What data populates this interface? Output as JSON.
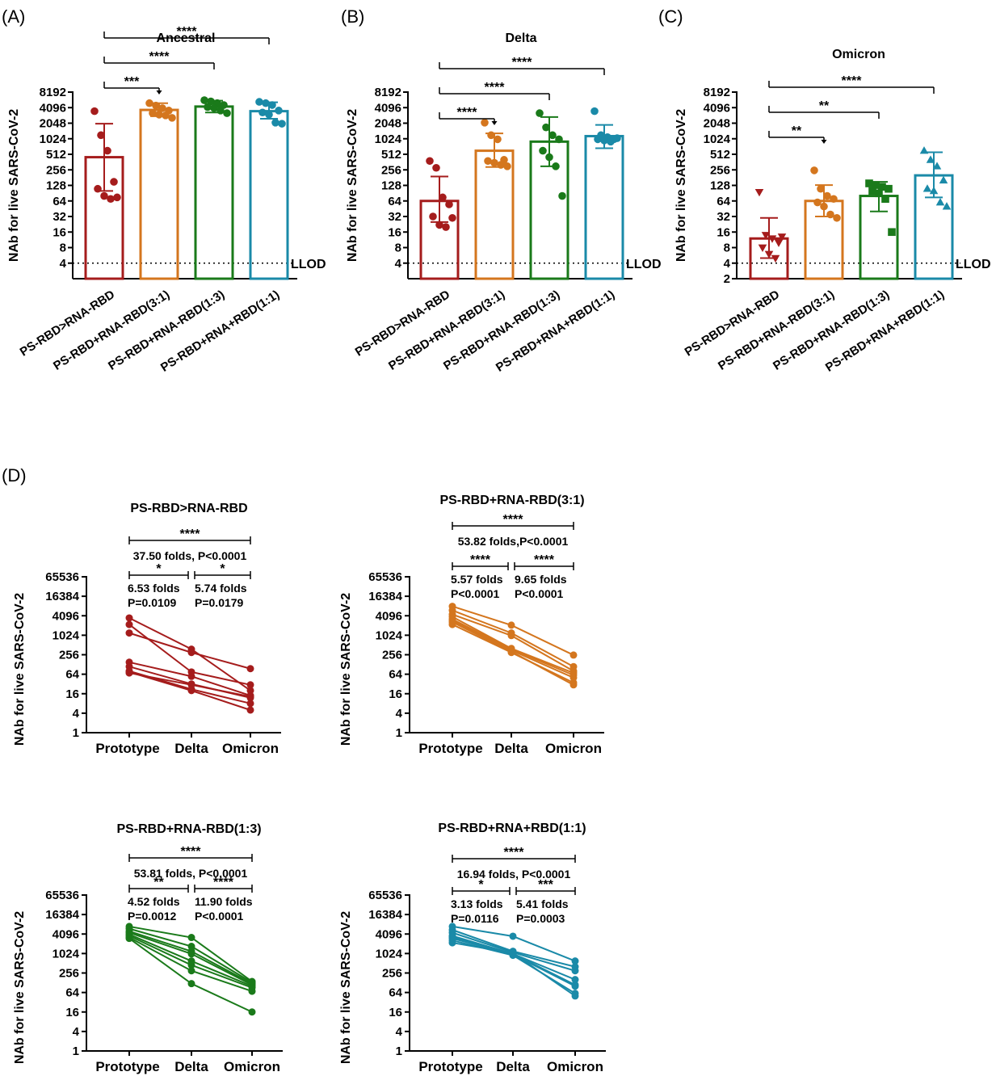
{
  "figure": {
    "panel_labels": [
      "(A)",
      "(B)",
      "(C)",
      "(D)"
    ]
  },
  "chart_data": [
    {
      "id": "A",
      "type": "bar",
      "title": "Ancestral",
      "ylabel": "NAb for live SARS-CoV-2",
      "yscale": "log2",
      "ylim": [
        2,
        8192
      ],
      "yticks": [
        4,
        8,
        16,
        32,
        64,
        128,
        256,
        512,
        1024,
        2048,
        4096,
        8192
      ],
      "ytick_labels": [
        "4",
        "8",
        "16",
        "32",
        "64",
        "128",
        "256",
        "512",
        "1024",
        "2048",
        "4096",
        "8192"
      ],
      "lod": {
        "value": 4,
        "label": "LLOD"
      },
      "categories": [
        "PS-RBD>RNA-RBD",
        "PS-RBD+RNA-RBD(3:1)",
        "PS-RBD+RNA-RBD(1:3)",
        "PS-RBD+RNA+RBD(1:1)"
      ],
      "colors": [
        "#a51c1c",
        "#d4761e",
        "#1a7a1a",
        "#1a8aa8"
      ],
      "markers": [
        "circle",
        "circle",
        "circle",
        "circle"
      ],
      "values": [
        450,
        3700,
        4300,
        3500
      ],
      "errors": [
        [
          100,
          2000
        ],
        [
          2800,
          5000
        ],
        [
          3300,
          5600
        ],
        [
          2500,
          5200
        ]
      ],
      "points": [
        [
          3500,
          1200,
          600,
          150,
          110,
          80,
          70,
          75
        ],
        [
          5000,
          4500,
          4000,
          3600,
          3200,
          3000,
          2900,
          2600
        ],
        [
          5700,
          5400,
          5000,
          4600,
          4200,
          4000,
          3600,
          3200
        ],
        [
          5300,
          5000,
          4600,
          3600,
          3300,
          3000,
          2100,
          2000
        ]
      ],
      "comparisons": [
        {
          "from": 0,
          "to": 1,
          "label": "***",
          "arrow": true
        },
        {
          "from": 0,
          "to": 2,
          "label": "****",
          "arrow": false
        },
        {
          "from": 0,
          "to": 3,
          "label": "****",
          "arrow": false
        }
      ]
    },
    {
      "id": "B",
      "type": "bar",
      "title": "Delta",
      "ylabel": "NAb for live SARS-CoV-2",
      "yscale": "log2",
      "ylim": [
        2,
        8192
      ],
      "yticks": [
        4,
        8,
        16,
        32,
        64,
        128,
        256,
        512,
        1024,
        2048,
        4096,
        8192
      ],
      "ytick_labels": [
        "4",
        "8",
        "16",
        "32",
        "64",
        "128",
        "256",
        "512",
        "1024",
        "2048",
        "4096",
        "8192"
      ],
      "lod": {
        "value": 4,
        "label": "LLOD"
      },
      "categories": [
        "PS-RBD>RNA-RBD",
        "PS-RBD+RNA-RBD(3:1)",
        "PS-RBD+RNA-RBD(1:3)",
        "PS-RBD+RNA+RBD(1:1)"
      ],
      "colors": [
        "#a51c1c",
        "#d4761e",
        "#1a7a1a",
        "#1a8aa8"
      ],
      "markers": [
        "circle",
        "circle",
        "circle",
        "circle"
      ],
      "values": [
        64,
        600,
        900,
        1150
      ],
      "errors": [
        [
          25,
          190
        ],
        [
          290,
          1300
        ],
        [
          300,
          2700
        ],
        [
          670,
          1900
        ]
      ],
      "points": [
        [
          380,
          280,
          75,
          55,
          32,
          22,
          20,
          30
        ],
        [
          2100,
          1200,
          1000,
          400,
          380,
          350,
          320,
          300
        ],
        [
          3200,
          1700,
          1200,
          1000,
          600,
          450,
          300,
          80
        ],
        [
          3500,
          1200,
          1100,
          1000,
          1000,
          950,
          900,
          1050
        ]
      ],
      "comparisons": [
        {
          "from": 0,
          "to": 1,
          "label": "****",
          "arrow": true
        },
        {
          "from": 0,
          "to": 2,
          "label": "****",
          "arrow": false
        },
        {
          "from": 0,
          "to": 3,
          "label": "****",
          "arrow": false
        }
      ]
    },
    {
      "id": "C",
      "type": "bar",
      "title": "Omicron",
      "ylabel": "NAb for live SARS-CoV-2",
      "yscale": "log2",
      "ylim": [
        2,
        8192
      ],
      "yticks": [
        2,
        4,
        8,
        16,
        32,
        64,
        128,
        256,
        512,
        1024,
        2048,
        4096,
        8192
      ],
      "ytick_labels": [
        "2",
        "4",
        "8",
        "16",
        "32",
        "64",
        "128",
        "256",
        "512",
        "1024",
        "2048",
        "4096",
        "8192"
      ],
      "lod": {
        "value": 4,
        "label": "LLOD"
      },
      "categories": [
        "PS-RBD>RNA-RBD",
        "PS-RBD+RNA-RBD(3:1)",
        "PS-RBD+RNA-RBD(1:3)",
        "PS-RBD+RNA+RBD(1:1)"
      ],
      "colors": [
        "#a51c1c",
        "#d4761e",
        "#1a7a1a",
        "#1a8aa8"
      ],
      "markers": [
        "triangle-down",
        "circle",
        "square",
        "triangle-up"
      ],
      "values": [
        12,
        64,
        80,
        200
      ],
      "errors": [
        [
          5,
          30
        ],
        [
          32,
          130
        ],
        [
          40,
          150
        ],
        [
          75,
          560
        ]
      ],
      "points": [
        [
          95,
          14,
          12,
          10,
          8,
          6,
          5,
          13
        ],
        [
          250,
          110,
          80,
          70,
          60,
          50,
          35,
          30
        ],
        [
          140,
          130,
          120,
          110,
          100,
          90,
          70,
          16
        ],
        [
          600,
          400,
          300,
          160,
          110,
          100,
          60,
          50
        ]
      ],
      "comparisons": [
        {
          "from": 0,
          "to": 1,
          "label": "**",
          "arrow": true
        },
        {
          "from": 0,
          "to": 2,
          "label": "**",
          "arrow": false
        },
        {
          "from": 0,
          "to": 3,
          "label": "****",
          "arrow": false
        }
      ]
    },
    {
      "id": "D1",
      "type": "line",
      "title": "PS-RBD>RNA-RBD",
      "ylabel": "NAb for live SARS-CoV-2",
      "yscale": "log2",
      "ylim": [
        1,
        65536
      ],
      "yticks": [
        1,
        4,
        16,
        64,
        256,
        1024,
        4096,
        16384,
        65536
      ],
      "ytick_labels": [
        "1",
        "4",
        "16",
        "64",
        "256",
        "1024",
        "4096",
        "16384",
        "65536"
      ],
      "x": [
        "Prototype",
        "Delta",
        "Omicron"
      ],
      "color": "#a51c1c",
      "lines": [
        [
          3500,
          380,
          20
        ],
        [
          2200,
          75,
          30
        ],
        [
          1200,
          300,
          95
        ],
        [
          150,
          55,
          14
        ],
        [
          110,
          32,
          12
        ],
        [
          80,
          22,
          8
        ],
        [
          75,
          20,
          5
        ],
        [
          70,
          30,
          13
        ]
      ],
      "brackets": [
        {
          "from": 0,
          "to": 2,
          "stars": "****",
          "text": [
            "37.50 folds, P<0.0001"
          ]
        },
        {
          "from": 0,
          "to": 1,
          "stars": "*",
          "text": [
            "6.53 folds",
            "P=0.0109"
          ]
        },
        {
          "from": 1,
          "to": 2,
          "stars": "*",
          "text": [
            "5.74 folds",
            "P=0.0179"
          ]
        }
      ]
    },
    {
      "id": "D2",
      "type": "line",
      "title": "PS-RBD+RNA-RBD(3:1)",
      "ylabel": "NAb for live SARS-CoV-2",
      "yscale": "log2",
      "ylim": [
        1,
        65536
      ],
      "yticks": [
        1,
        4,
        16,
        64,
        256,
        1024,
        4096,
        16384,
        65536
      ],
      "ytick_labels": [
        "1",
        "4",
        "16",
        "64",
        "256",
        "1024",
        "4096",
        "16384",
        "65536"
      ],
      "x": [
        "Prototype",
        "Delta",
        "Omicron"
      ],
      "color": "#d4761e",
      "lines": [
        [
          8000,
          2100,
          250
        ],
        [
          6000,
          1200,
          110
        ],
        [
          4500,
          1000,
          80
        ],
        [
          3800,
          400,
          70
        ],
        [
          3200,
          380,
          60
        ],
        [
          2900,
          350,
          50
        ],
        [
          2600,
          320,
          30
        ],
        [
          2200,
          300,
          35
        ]
      ],
      "brackets": [
        {
          "from": 0,
          "to": 2,
          "stars": "****",
          "text": [
            "53.82 folds,P<0.0001"
          ]
        },
        {
          "from": 0,
          "to": 1,
          "stars": "****",
          "text": [
            "5.57 folds",
            "P<0.0001"
          ]
        },
        {
          "from": 1,
          "to": 2,
          "stars": "****",
          "text": [
            "9.65 folds",
            "P<0.0001"
          ]
        }
      ]
    },
    {
      "id": "D3",
      "type": "line",
      "title": "PS-RBD+RNA-RBD(1:3)",
      "ylabel": "NAb for live SARS-CoV-2",
      "yscale": "log2",
      "ylim": [
        1,
        65536
      ],
      "yticks": [
        1,
        4,
        16,
        64,
        256,
        1024,
        4096,
        16384,
        65536
      ],
      "ytick_labels": [
        "1",
        "4",
        "16",
        "64",
        "256",
        "1024",
        "4096",
        "16384",
        "65536"
      ],
      "x": [
        "Prototype",
        "Delta",
        "Omicron"
      ],
      "color": "#1a7a1a",
      "lines": [
        [
          7000,
          3200,
          140
        ],
        [
          6000,
          1700,
          130
        ],
        [
          5000,
          1200,
          120
        ],
        [
          4500,
          1000,
          110
        ],
        [
          4000,
          600,
          100
        ],
        [
          3600,
          450,
          90
        ],
        [
          3200,
          300,
          70
        ],
        [
          3000,
          120,
          16
        ]
      ],
      "brackets": [
        {
          "from": 0,
          "to": 2,
          "stars": "****",
          "text": [
            "53.81 folds, P<0.0001"
          ]
        },
        {
          "from": 0,
          "to": 1,
          "stars": "**",
          "text": [
            "4.52 folds",
            "P=0.0012"
          ]
        },
        {
          "from": 1,
          "to": 2,
          "stars": "****",
          "text": [
            "11.90 folds",
            "P<0.0001"
          ]
        }
      ]
    },
    {
      "id": "D4",
      "type": "line",
      "title": "PS-RBD+RNA+RBD(1:1)",
      "ylabel": "NAb for live SARS-CoV-2",
      "yscale": "log2",
      "ylim": [
        1,
        65536
      ],
      "yticks": [
        1,
        4,
        16,
        64,
        256,
        1024,
        4096,
        16384,
        65536
      ],
      "ytick_labels": [
        "1",
        "4",
        "16",
        "64",
        "256",
        "1024",
        "4096",
        "16384",
        "65536"
      ],
      "x": [
        "Prototype",
        "Delta",
        "Omicron"
      ],
      "color": "#1a8aa8",
      "lines": [
        [
          7000,
          3500,
          600
        ],
        [
          5500,
          1200,
          400
        ],
        [
          4500,
          1100,
          300
        ],
        [
          3600,
          1000,
          160
        ],
        [
          3300,
          1000,
          110
        ],
        [
          3000,
          950,
          100
        ],
        [
          2600,
          900,
          60
        ],
        [
          2200,
          1050,
          50
        ]
      ],
      "brackets": [
        {
          "from": 0,
          "to": 2,
          "stars": "****",
          "text": [
            "16.94 folds, P<0.0001"
          ]
        },
        {
          "from": 0,
          "to": 1,
          "stars": "*",
          "text": [
            "3.13 folds",
            "P=0.0116"
          ]
        },
        {
          "from": 1,
          "to": 2,
          "stars": "***",
          "text": [
            "5.41 folds",
            "P=0.0003"
          ]
        }
      ]
    }
  ]
}
